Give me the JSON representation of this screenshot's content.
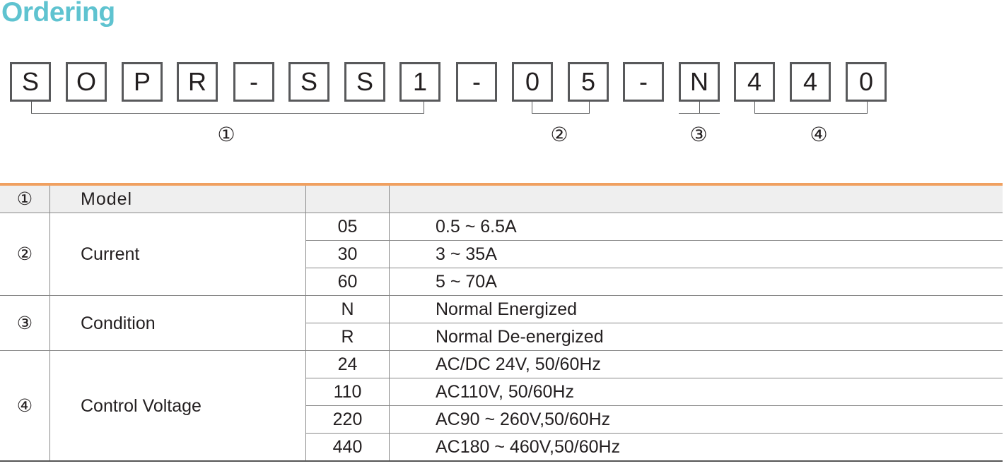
{
  "title": "Ordering",
  "code_boxes": [
    "S",
    "O",
    "P",
    "R",
    "-",
    "S",
    "S",
    "1",
    "-",
    "0",
    "5",
    "-",
    "N",
    "4",
    "4",
    "0"
  ],
  "groups": [
    "①",
    "②",
    "③",
    "④"
  ],
  "table": {
    "header": {
      "num": "①",
      "name": "Model",
      "code": "",
      "desc": ""
    },
    "sections": [
      {
        "num": "②",
        "name": "Current",
        "rows": [
          {
            "code": "05",
            "desc": "0.5 ~ 6.5A"
          },
          {
            "code": "30",
            "desc": "3 ~ 35A"
          },
          {
            "code": "60",
            "desc": "5 ~ 70A"
          }
        ]
      },
      {
        "num": "③",
        "name": "Condition",
        "rows": [
          {
            "code": "N",
            "desc": "Normal Energized"
          },
          {
            "code": "R",
            "desc": "Normal De-energized"
          }
        ]
      },
      {
        "num": "④",
        "name": "Control Voltage",
        "rows": [
          {
            "code": "24",
            "desc": "AC/DC 24V, 50/60Hz"
          },
          {
            "code": "110",
            "desc": "AC110V, 50/60Hz"
          },
          {
            "code": "220",
            "desc": "AC90 ~ 260V,50/60Hz"
          },
          {
            "code": "440",
            "desc": "AC180 ~ 460V,50/60Hz"
          }
        ]
      }
    ]
  },
  "colors": {
    "title": "#5fc3d0",
    "accent_line": "#f0a060",
    "header_bg": "#efefef"
  }
}
